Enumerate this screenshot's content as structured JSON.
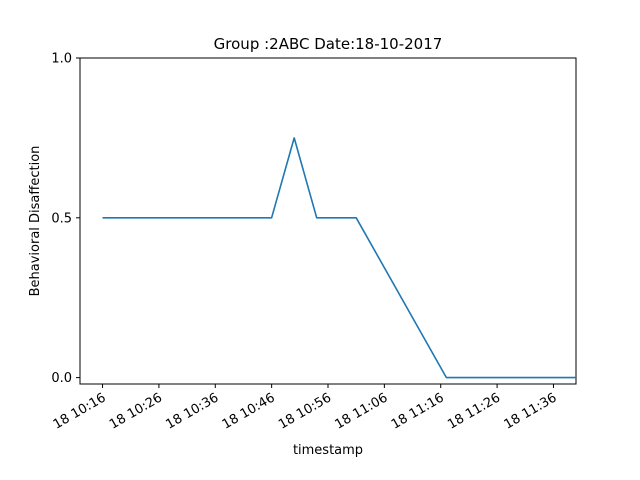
{
  "chart_data": {
    "type": "line",
    "title": "Group :2ABC Date:18-10-2017",
    "xlabel": "timestamp",
    "ylabel": "Behavioral Disaffection",
    "xlim": [
      "2017-10-18 10:12",
      "2017-10-18 11:40"
    ],
    "ylim": [
      -0.02,
      1.0
    ],
    "x_tick_values": [
      "2017-10-18 10:16",
      "2017-10-18 10:26",
      "2017-10-18 10:36",
      "2017-10-18 10:46",
      "2017-10-18 10:56",
      "2017-10-18 11:06",
      "2017-10-18 11:16",
      "2017-10-18 11:26",
      "2017-10-18 11:36"
    ],
    "x_tick_labels": [
      "18 10:16",
      "18 10:26",
      "18 10:36",
      "18 10:46",
      "18 10:56",
      "18 11:06",
      "18 11:16",
      "18 11:26",
      "18 11:36"
    ],
    "y_ticks": [
      0.0,
      0.5,
      1.0
    ],
    "y_tick_labels": [
      "0.0",
      "0.5",
      "1.0"
    ],
    "grid": false,
    "series": [
      {
        "color": "#1f77b4",
        "x": [
          "2017-10-18 10:16",
          "2017-10-18 10:46",
          "2017-10-18 10:50",
          "2017-10-18 10:54",
          "2017-10-18 11:01",
          "2017-10-18 11:17",
          "2017-10-18 11:40"
        ],
        "y": [
          0.5,
          0.5,
          0.75,
          0.5,
          0.5,
          0.0,
          0.0
        ]
      }
    ]
  }
}
